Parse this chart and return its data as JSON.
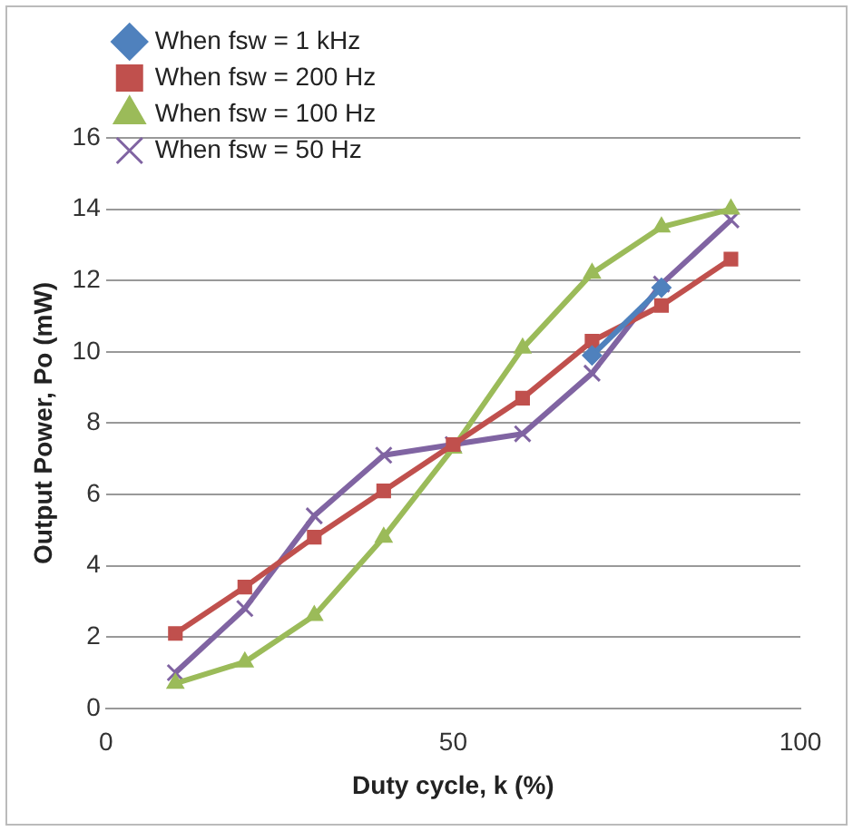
{
  "chart_data": {
    "type": "line",
    "xlabel": "Duty cycle, k (%)",
    "ylabel": "Output Power, Po (mW)",
    "x": [
      10,
      20,
      30,
      40,
      50,
      60,
      70,
      80,
      90
    ],
    "series": [
      {
        "name": "When fsw = 1 kHz",
        "color": "#4f81bd",
        "marker": "diamond",
        "values": [
          null,
          null,
          null,
          null,
          null,
          null,
          9.9,
          11.8,
          null
        ]
      },
      {
        "name": "When fsw = 200 Hz",
        "color": "#c0504d",
        "marker": "square",
        "values": [
          2.1,
          3.4,
          4.8,
          6.1,
          7.4,
          8.7,
          10.3,
          11.3,
          12.6
        ]
      },
      {
        "name": "When fsw = 100 Hz",
        "color": "#9bbb59",
        "marker": "triangle",
        "values": [
          0.7,
          1.3,
          2.6,
          4.8,
          7.3,
          10.1,
          12.2,
          13.5,
          14.0
        ]
      },
      {
        "name": "When fsw = 50 Hz",
        "color": "#8064a2",
        "marker": "cross",
        "values": [
          1.0,
          2.8,
          5.4,
          7.1,
          7.4,
          7.7,
          9.4,
          11.9,
          13.7
        ]
      }
    ],
    "xlim": [
      0,
      100
    ],
    "xticks": [
      0,
      50,
      100
    ],
    "ylim": [
      0,
      16
    ],
    "yticks": [
      0,
      2,
      4,
      6,
      8,
      10,
      12,
      14,
      16
    ],
    "grid": "y",
    "legend": "top left"
  }
}
